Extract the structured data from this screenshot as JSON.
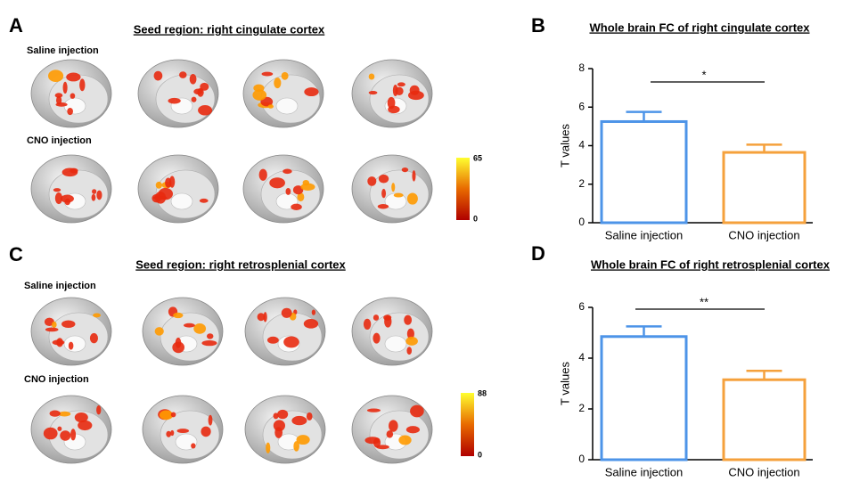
{
  "panels": [
    {
      "label": "A",
      "title": "Seed region: right cingulate cortex",
      "rows": [
        "Saline injection",
        "CNO injection"
      ],
      "colorbar": {
        "max": 65,
        "min": 0
      }
    },
    {
      "label": "C",
      "title": "Seed region: right retrosplenial cortex",
      "rows": [
        "Saline injection",
        "CNO injection"
      ],
      "colorbar": {
        "max": 88,
        "min": 0
      }
    }
  ],
  "chart_data": [
    {
      "type": "bar",
      "panel_label": "B",
      "title": "Whole brain FC of right cingulate cortex",
      "y_label": "T values",
      "categories": [
        "Saline injection",
        "CNO injection"
      ],
      "values": [
        5.25,
        3.65
      ],
      "errors": [
        0.5,
        0.4
      ],
      "colors": [
        "#4d94e8",
        "#f5a13c"
      ],
      "ylim": [
        0,
        8
      ],
      "yticks": [
        0,
        2,
        4,
        6,
        8
      ],
      "significance": "*"
    },
    {
      "type": "bar",
      "panel_label": "D",
      "title": "Whole brain FC of right retrosplenial cortex",
      "y_label": "T values",
      "categories": [
        "Saline injection",
        "CNO injection"
      ],
      "values": [
        4.85,
        3.15
      ],
      "errors": [
        0.4,
        0.35
      ],
      "colors": [
        "#4d94e8",
        "#f5a13c"
      ],
      "ylim": [
        0,
        6
      ],
      "yticks": [
        0,
        2,
        4,
        6
      ],
      "significance": "**"
    }
  ]
}
